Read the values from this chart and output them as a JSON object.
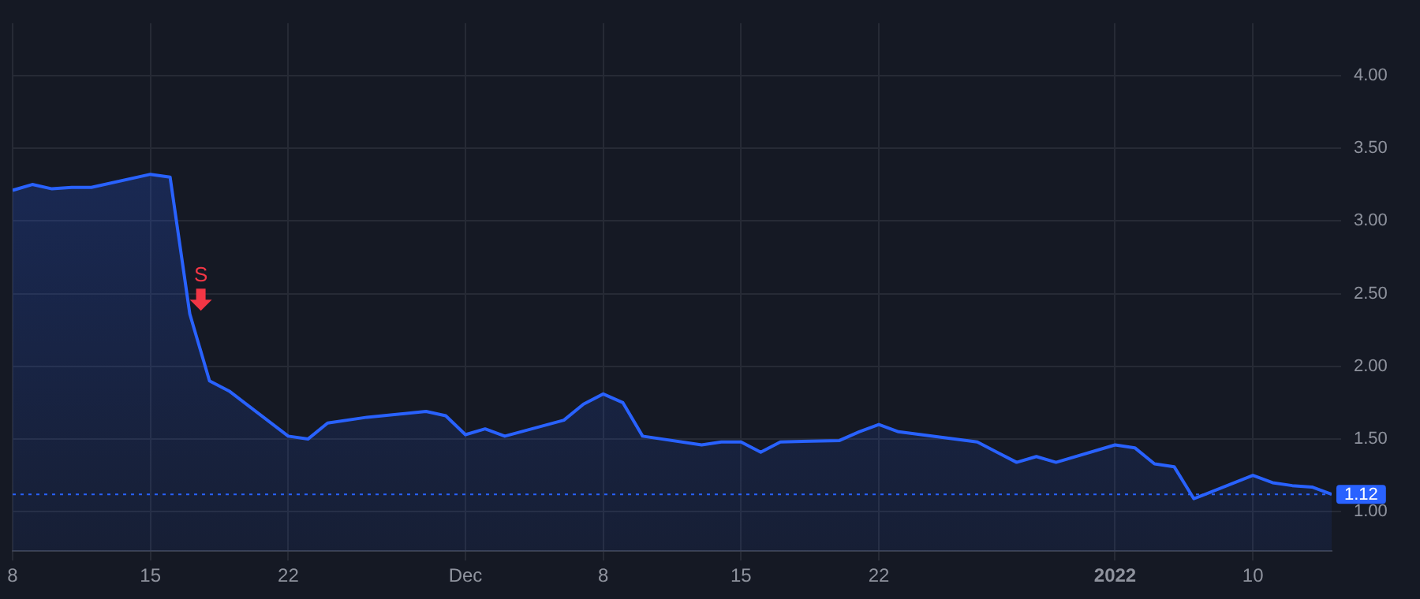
{
  "chart_data": {
    "type": "area",
    "x": [
      "2021-11-08",
      "2021-11-09",
      "2021-11-10",
      "2021-11-11",
      "2021-11-12",
      "2021-11-15",
      "2021-11-16",
      "2021-11-17",
      "2021-11-18",
      "2021-11-19",
      "2021-11-22",
      "2021-11-23",
      "2021-11-24",
      "2021-11-26",
      "2021-11-29",
      "2021-11-30",
      "2021-12-01",
      "2021-12-02",
      "2021-12-03",
      "2021-12-06",
      "2021-12-07",
      "2021-12-08",
      "2021-12-09",
      "2021-12-10",
      "2021-12-13",
      "2021-12-14",
      "2021-12-15",
      "2021-12-16",
      "2021-12-17",
      "2021-12-20",
      "2021-12-21",
      "2021-12-22",
      "2021-12-23",
      "2021-12-27",
      "2021-12-28",
      "2021-12-29",
      "2021-12-30",
      "2021-12-31",
      "2022-01-03",
      "2022-01-04",
      "2022-01-05",
      "2022-01-06",
      "2022-01-07",
      "2022-01-10",
      "2022-01-11",
      "2022-01-12",
      "2022-01-13",
      "2022-01-14"
    ],
    "series": [
      {
        "color": "#2962ff",
        "values": [
          3.21,
          3.25,
          3.22,
          3.23,
          3.23,
          3.32,
          3.3,
          2.36,
          1.9,
          1.83,
          1.52,
          1.5,
          1.61,
          1.65,
          1.69,
          1.66,
          1.53,
          1.57,
          1.52,
          1.63,
          1.74,
          1.81,
          1.75,
          1.52,
          1.46,
          1.48,
          1.48,
          1.41,
          1.48,
          1.49,
          1.55,
          1.6,
          1.55,
          1.48,
          1.41,
          1.34,
          1.38,
          1.34,
          1.46,
          1.44,
          1.33,
          1.31,
          1.09,
          1.25,
          1.2,
          1.18,
          1.17,
          1.12
        ]
      }
    ],
    "xticks": [
      {
        "value": "2021-11-08",
        "label": "8"
      },
      {
        "value": "2021-11-15",
        "label": "15"
      },
      {
        "value": "2021-11-22",
        "label": "22"
      },
      {
        "value": "2021-12-01",
        "label": "Dec"
      },
      {
        "value": "2021-12-08",
        "label": "8"
      },
      {
        "value": "2021-12-15",
        "label": "15"
      },
      {
        "value": "2021-12-22",
        "label": "22"
      },
      {
        "value": "2022-01-03",
        "label": "2022"
      },
      {
        "value": "2022-01-10",
        "label": "10"
      }
    ],
    "xlim": [
      "2021-11-08",
      "2022-01-14"
    ],
    "ylim": [
      0.73,
      4.36
    ],
    "yticks": [
      {
        "value": 1,
        "label": "1.00"
      },
      {
        "value": 1.5,
        "label": "1.50"
      },
      {
        "value": 2,
        "label": "2.00"
      },
      {
        "value": 2.5,
        "label": "2.50"
      },
      {
        "value": 3,
        "label": "3.00"
      },
      {
        "value": 3.5,
        "label": "3.50"
      },
      {
        "value": 4,
        "label": "4.00"
      }
    ],
    "grid": true,
    "ref_lines": [
      {
        "axis": "y",
        "value": 1.12,
        "label": "1.12",
        "color": "#2962ff",
        "line_style": "dotted"
      }
    ],
    "annotations": [
      {
        "text": "S",
        "x": "2021-11-17",
        "y": 2.36
      }
    ]
  }
}
